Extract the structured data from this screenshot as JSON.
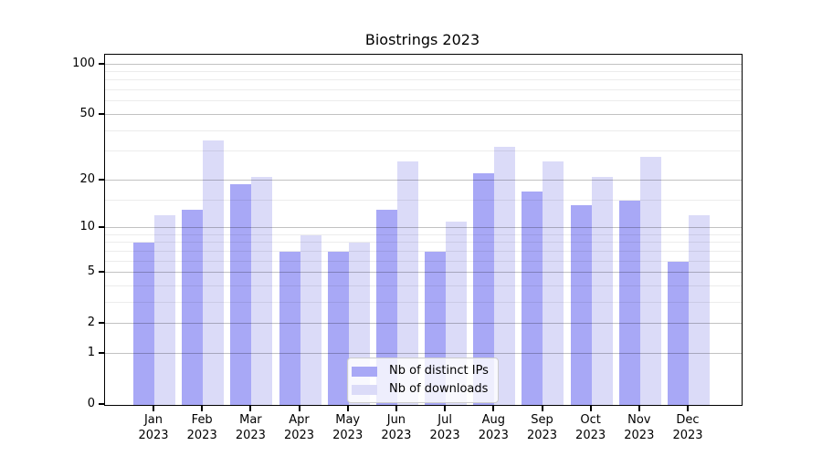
{
  "chart_data": {
    "type": "bar",
    "title": "Biostrings 2023",
    "categories": [
      "Jan",
      "Feb",
      "Mar",
      "Apr",
      "May",
      "Jun",
      "Jul",
      "Aug",
      "Sep",
      "Oct",
      "Nov",
      "Dec"
    ],
    "x_year_label": "2023",
    "series": [
      {
        "name": "Nb of distinct IPs",
        "color": "#a8a8f6",
        "values": [
          8,
          13,
          19,
          7,
          7,
          13,
          7,
          22,
          17,
          14,
          15,
          6
        ]
      },
      {
        "name": "Nb of downloads",
        "color": "#dbdbf8",
        "values": [
          12,
          35,
          21,
          9,
          8,
          26,
          11,
          32,
          26,
          21,
          28,
          12
        ]
      }
    ],
    "yscale": "log1p",
    "ylim": [
      0,
      114
    ],
    "y_major_ticks": [
      0,
      1,
      2,
      5,
      10,
      20,
      50,
      100
    ],
    "y_minor_gridlines": [
      3,
      4,
      6,
      7,
      8,
      9,
      15,
      30,
      40,
      60,
      70,
      80,
      90
    ],
    "grid": true,
    "grid_over_bars": true,
    "legend_position": "lower center",
    "axis_color": "#000000",
    "background_color": "#ffffff"
  }
}
